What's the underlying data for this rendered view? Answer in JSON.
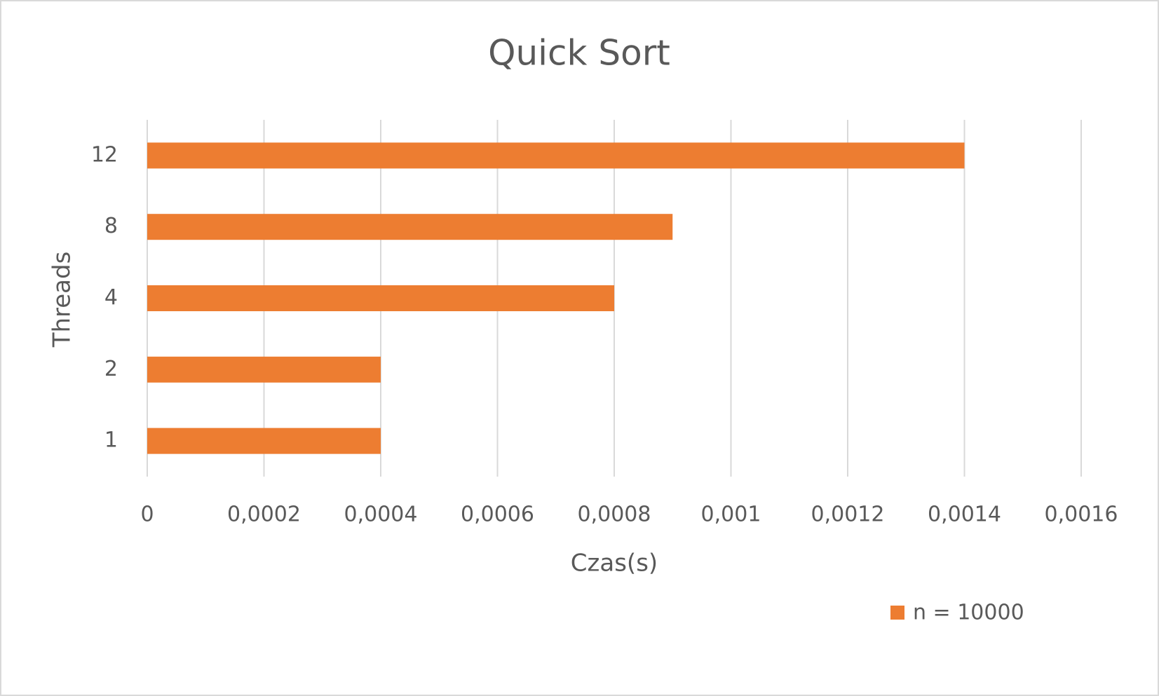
{
  "chart_data": {
    "type": "bar",
    "orientation": "horizontal",
    "title": "Quick Sort",
    "x_label": "Czas(s)",
    "y_label": "Threads",
    "categories": [
      "1",
      "2",
      "4",
      "8",
      "12"
    ],
    "series": [
      {
        "name": "n = 10000",
        "color": "#ED7D31",
        "values": [
          0.0004,
          0.0004,
          0.0008,
          0.0009,
          0.0014
        ]
      }
    ],
    "xlim": [
      0,
      0.0016
    ],
    "xticks": [
      0,
      {
        "value": 0.0002,
        "label": "0,0002"
      },
      {
        "value": 0.0004,
        "label": "0,0004"
      },
      {
        "value": 0.0006,
        "label": "0,0006"
      },
      {
        "value": 0.0008,
        "label": "0,0008"
      },
      {
        "value": 0.001,
        "label": "0,001"
      },
      {
        "value": 0.0012,
        "label": "0,0012"
      },
      {
        "value": 0.0014,
        "label": "0,0014"
      },
      {
        "value": 0.0016,
        "label": "0,0016"
      }
    ],
    "grid": true,
    "legend": "bottom-right"
  }
}
